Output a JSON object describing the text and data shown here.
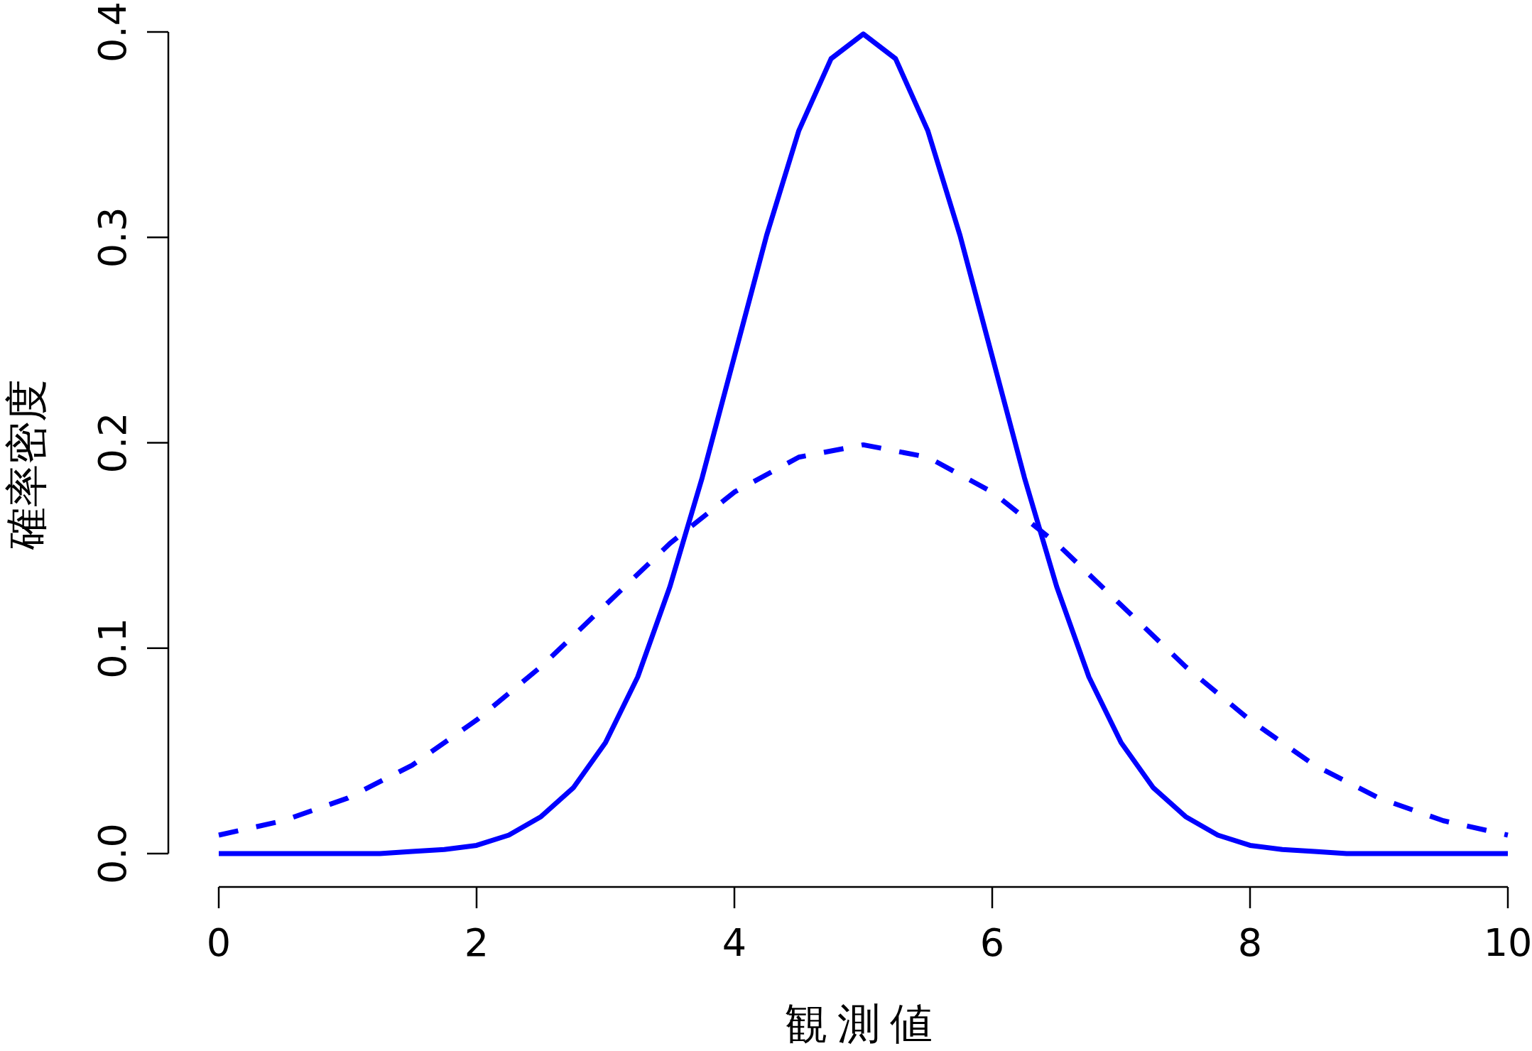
{
  "chart_data": {
    "type": "line",
    "xlabel": "観測値",
    "ylabel": "確率密度",
    "xlim": [
      0,
      10
    ],
    "ylim": [
      0,
      0.4
    ],
    "xticks": [
      0,
      2,
      4,
      6,
      8,
      10
    ],
    "yticks": [
      {
        "value": 0,
        "label": "0.0"
      },
      0.1,
      0.2,
      0.3,
      0.4
    ],
    "series": [
      {
        "color": "#0000ff",
        "line_style": "solid",
        "x": [
          0,
          0.25,
          0.5,
          0.75,
          1,
          1.25,
          1.5,
          1.75,
          2,
          2.25,
          2.5,
          2.75,
          3,
          3.25,
          3.5,
          3.75,
          4,
          4.25,
          4.5,
          4.75,
          5,
          5.25,
          5.5,
          5.75,
          6,
          6.25,
          6.5,
          6.75,
          7,
          7.25,
          7.5,
          7.75,
          8,
          8.25,
          8.5,
          8.75,
          9,
          9.25,
          9.5,
          9.75,
          10
        ],
        "values": [
          0,
          0,
          0,
          0,
          0,
          0,
          0.001,
          0.002,
          0.004,
          0.009,
          0.018,
          0.032,
          0.054,
          0.086,
          0.13,
          0.183,
          0.242,
          0.301,
          0.352,
          0.387,
          0.399,
          0.387,
          0.352,
          0.301,
          0.242,
          0.183,
          0.13,
          0.086,
          0.054,
          0.032,
          0.018,
          0.009,
          0.004,
          0.002,
          0.001,
          0,
          0,
          0,
          0,
          0,
          0
        ]
      },
      {
        "color": "#0000ff",
        "line_style": "dashed",
        "x": [
          0,
          0.5,
          1,
          1.5,
          2,
          2.5,
          3,
          3.5,
          4,
          4.5,
          5,
          5.5,
          6,
          6.5,
          7,
          7.5,
          8,
          8.5,
          9,
          9.5,
          10
        ],
        "values": [
          0.009,
          0.016,
          0.027,
          0.043,
          0.065,
          0.091,
          0.121,
          0.151,
          0.176,
          0.193,
          0.199,
          0.193,
          0.176,
          0.151,
          0.121,
          0.091,
          0.065,
          0.043,
          0.027,
          0.016,
          0.009
        ]
      }
    ]
  }
}
